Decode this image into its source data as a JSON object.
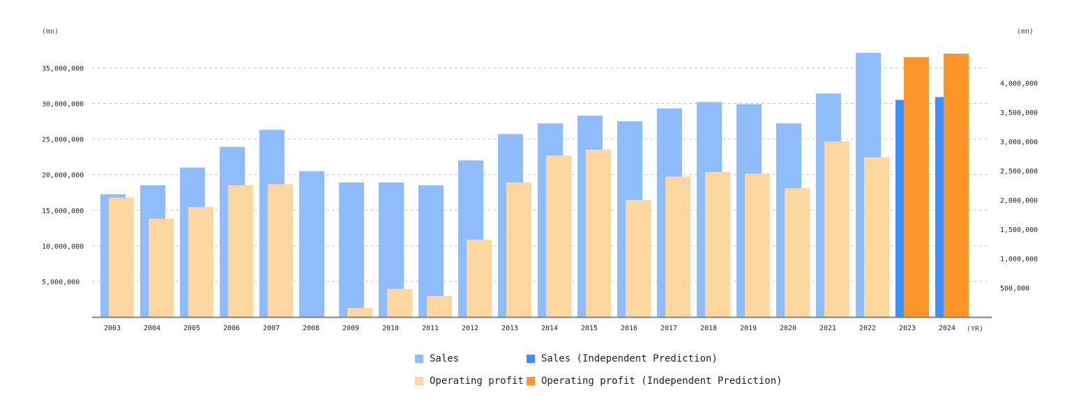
{
  "chart_data": {
    "type": "bar",
    "categories": [
      "2003",
      "2004",
      "2005",
      "2006",
      "2007",
      "2008",
      "2009",
      "2010",
      "2011",
      "2012",
      "2013",
      "2014",
      "2015",
      "2016",
      "2017",
      "2018",
      "2019",
      "2020",
      "2021",
      "2022",
      "2023",
      "2024"
    ],
    "left_axis": {
      "unit_label": "(mn)",
      "ylim": [
        0,
        37000000
      ],
      "ticks": [
        5000000,
        10000000,
        15000000,
        20000000,
        25000000,
        30000000,
        35000000
      ],
      "tick_labels": [
        "5,000,000",
        "10,000,000",
        "15,000,000",
        "20,000,000",
        "25,000,000",
        "30,000,000",
        "35,000,000"
      ],
      "grid": true
    },
    "right_axis": {
      "unit_label": "(mn)",
      "ylim": [
        0,
        4500000
      ],
      "ticks": [
        500000,
        1000000,
        1500000,
        2000000,
        2500000,
        3000000,
        3500000,
        4000000
      ],
      "tick_labels": [
        "500,000",
        "1,000,000",
        "1,500,000",
        "2,000,000",
        "2,500,000",
        "3,000,000",
        "3,500,000",
        "4,000,000"
      ]
    },
    "x_unit_label": "(YR)",
    "series": [
      {
        "name": "Sales",
        "axis": "left",
        "color": "#8fbcfd",
        "values": [
          17250000,
          18500000,
          21000000,
          23900000,
          26300000,
          20500000,
          18900000,
          18900000,
          18500000,
          22000000,
          25700000,
          27200000,
          28300000,
          27500000,
          29300000,
          30200000,
          29900000,
          27200000,
          31400000,
          37100000,
          null,
          null
        ]
      },
      {
        "name": "Operating profit",
        "axis": "right",
        "color": "#fdd6a0",
        "values": [
          2040000,
          1680000,
          1880000,
          2250000,
          2270000,
          null,
          155000,
          480000,
          360000,
          1320000,
          2300000,
          2760000,
          2860000,
          2000000,
          2400000,
          2480000,
          2450000,
          2200000,
          3000000,
          2730000,
          null,
          null
        ]
      },
      {
        "name": "Sales (Independent Prediction)",
        "axis": "left",
        "color": "#3d8ffe",
        "values": [
          null,
          null,
          null,
          null,
          null,
          null,
          null,
          null,
          null,
          null,
          null,
          null,
          null,
          null,
          null,
          null,
          null,
          null,
          null,
          null,
          30500000,
          30900000
        ]
      },
      {
        "name": "Operating profit (Independent Prediction)",
        "axis": "right",
        "color": "#fe952a",
        "values": [
          null,
          null,
          null,
          null,
          null,
          null,
          null,
          null,
          null,
          null,
          null,
          null,
          null,
          null,
          null,
          null,
          null,
          null,
          null,
          null,
          4440000,
          4500000
        ]
      }
    ],
    "legend_position": "bottom"
  }
}
